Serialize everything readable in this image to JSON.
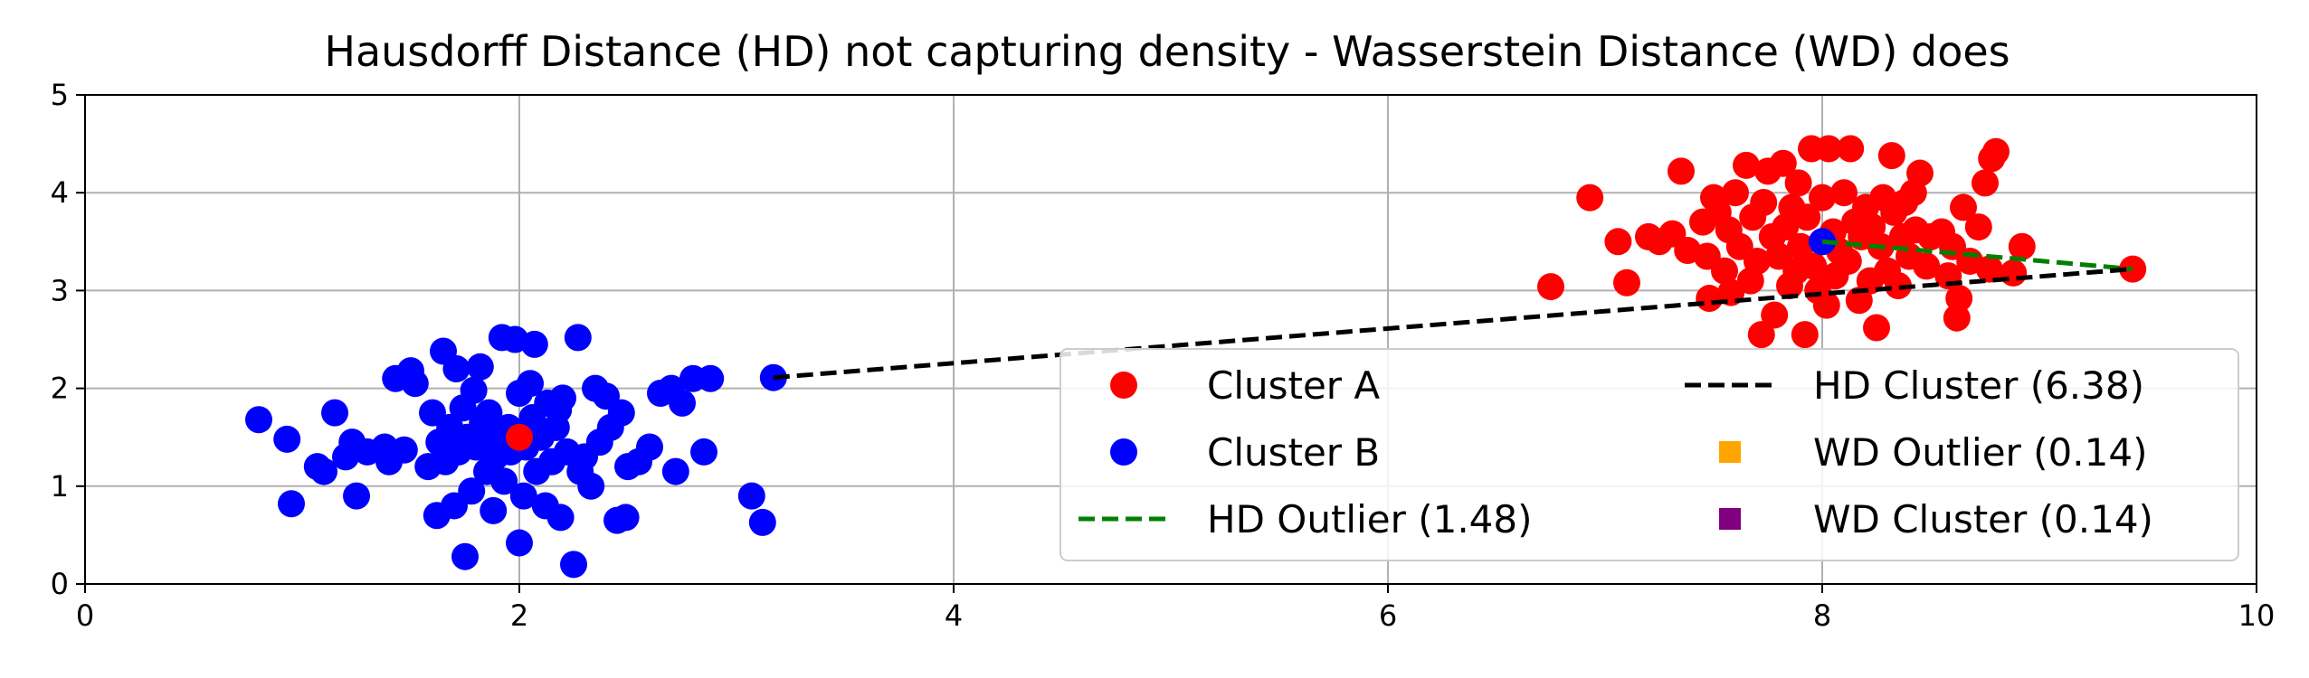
{
  "chart_data": {
    "type": "scatter",
    "title": "Hausdorff Distance (HD) not capturing density - Wasserstein Distance (WD) does",
    "xlabel": "",
    "ylabel": "",
    "xlim": [
      0,
      10
    ],
    "ylim": [
      0,
      5
    ],
    "xticks": [
      0,
      2,
      4,
      6,
      8,
      10
    ],
    "yticks": [
      0,
      1,
      2,
      3,
      4,
      5
    ],
    "grid": true,
    "legend_position": "lower-right",
    "series": [
      {
        "name": "Cluster A",
        "kind": "scatter",
        "color": "#ff0000",
        "points": [
          [
            6.75,
            3.04
          ],
          [
            6.93,
            3.95
          ],
          [
            7.06,
            3.5
          ],
          [
            7.1,
            3.08
          ],
          [
            7.2,
            3.55
          ],
          [
            7.25,
            3.5
          ],
          [
            7.31,
            3.58
          ],
          [
            7.35,
            4.22
          ],
          [
            7.38,
            3.41
          ],
          [
            7.45,
            3.7
          ],
          [
            7.47,
            3.35
          ],
          [
            7.5,
            3.95
          ],
          [
            7.52,
            3.8
          ],
          [
            7.55,
            3.2
          ],
          [
            7.57,
            3.62
          ],
          [
            7.6,
            4.0
          ],
          [
            7.62,
            3.45
          ],
          [
            7.65,
            4.28
          ],
          [
            7.67,
            3.1
          ],
          [
            7.68,
            3.75
          ],
          [
            7.7,
            3.3
          ],
          [
            7.72,
            2.55
          ],
          [
            7.73,
            3.9
          ],
          [
            7.75,
            4.22
          ],
          [
            7.77,
            3.55
          ],
          [
            7.78,
            2.75
          ],
          [
            7.8,
            3.35
          ],
          [
            7.82,
            4.3
          ],
          [
            7.83,
            3.65
          ],
          [
            7.85,
            3.05
          ],
          [
            7.86,
            3.85
          ],
          [
            7.88,
            3.2
          ],
          [
            7.89,
            4.1
          ],
          [
            7.9,
            3.45
          ],
          [
            7.92,
            2.55
          ],
          [
            7.93,
            3.75
          ],
          [
            7.95,
            4.45
          ],
          [
            7.96,
            3.25
          ],
          [
            7.98,
            3.0
          ],
          [
            8.0,
            3.95
          ],
          [
            8.0,
            3.5
          ],
          [
            8.02,
            2.85
          ],
          [
            8.03,
            4.45
          ],
          [
            8.05,
            3.6
          ],
          [
            8.06,
            3.15
          ],
          [
            8.08,
            3.4
          ],
          [
            8.1,
            4.0
          ],
          [
            8.12,
            3.3
          ],
          [
            8.13,
            4.45
          ],
          [
            8.15,
            3.7
          ],
          [
            8.17,
            2.9
          ],
          [
            8.18,
            3.55
          ],
          [
            8.2,
            3.85
          ],
          [
            8.22,
            3.1
          ],
          [
            8.23,
            3.65
          ],
          [
            8.25,
            2.62
          ],
          [
            8.27,
            3.45
          ],
          [
            8.28,
            3.95
          ],
          [
            8.3,
            3.2
          ],
          [
            8.32,
            4.38
          ],
          [
            8.33,
            3.8
          ],
          [
            8.35,
            3.05
          ],
          [
            8.37,
            3.55
          ],
          [
            8.38,
            3.9
          ],
          [
            8.4,
            3.35
          ],
          [
            8.42,
            4.0
          ],
          [
            8.43,
            3.62
          ],
          [
            8.45,
            4.2
          ],
          [
            8.48,
            3.25
          ],
          [
            8.5,
            3.55
          ],
          [
            8.55,
            3.6
          ],
          [
            8.58,
            3.15
          ],
          [
            8.6,
            3.45
          ],
          [
            8.62,
            2.72
          ],
          [
            8.63,
            2.92
          ],
          [
            8.65,
            3.85
          ],
          [
            8.68,
            3.3
          ],
          [
            8.72,
            3.65
          ],
          [
            8.75,
            4.1
          ],
          [
            8.77,
            3.22
          ],
          [
            8.78,
            4.35
          ],
          [
            8.8,
            4.42
          ],
          [
            8.92,
            3.45
          ],
          [
            7.48,
            2.92
          ],
          [
            7.58,
            2.98
          ],
          [
            8.88,
            3.18
          ],
          [
            9.43,
            3.22
          ]
        ]
      },
      {
        "name": "Cluster B",
        "kind": "scatter",
        "color": "#0000ff",
        "points": [
          [
            0.8,
            1.68
          ],
          [
            0.93,
            1.48
          ],
          [
            0.95,
            0.82
          ],
          [
            1.07,
            1.2
          ],
          [
            1.1,
            1.15
          ],
          [
            1.15,
            1.75
          ],
          [
            1.2,
            1.3
          ],
          [
            1.23,
            1.45
          ],
          [
            1.25,
            0.9
          ],
          [
            1.3,
            1.35
          ],
          [
            1.38,
            1.4
          ],
          [
            1.4,
            1.25
          ],
          [
            1.43,
            2.1
          ],
          [
            1.47,
            1.37
          ],
          [
            1.5,
            2.18
          ],
          [
            1.52,
            2.05
          ],
          [
            1.58,
            1.2
          ],
          [
            1.6,
            1.75
          ],
          [
            1.62,
            0.7
          ],
          [
            1.63,
            1.45
          ],
          [
            1.65,
            2.38
          ],
          [
            1.66,
            1.25
          ],
          [
            1.68,
            1.6
          ],
          [
            1.7,
            0.8
          ],
          [
            1.71,
            2.2
          ],
          [
            1.72,
            1.35
          ],
          [
            1.74,
            1.8
          ],
          [
            1.75,
            0.28
          ],
          [
            1.76,
            1.5
          ],
          [
            1.78,
            0.95
          ],
          [
            1.79,
            1.98
          ],
          [
            1.8,
            1.4
          ],
          [
            1.82,
            2.22
          ],
          [
            1.83,
            1.65
          ],
          [
            1.85,
            1.15
          ],
          [
            1.86,
            1.75
          ],
          [
            1.88,
            0.75
          ],
          [
            1.89,
            1.3
          ],
          [
            1.9,
            1.5
          ],
          [
            1.92,
            2.52
          ],
          [
            1.93,
            1.05
          ],
          [
            1.95,
            1.6
          ],
          [
            1.96,
            1.35
          ],
          [
            1.98,
            2.5
          ],
          [
            2.0,
            0.42
          ],
          [
            2.0,
            1.95
          ],
          [
            2.02,
            0.9
          ],
          [
            2.03,
            1.4
          ],
          [
            2.05,
            2.05
          ],
          [
            2.06,
            1.7
          ],
          [
            2.07,
            2.45
          ],
          [
            2.08,
            1.15
          ],
          [
            2.1,
            1.5
          ],
          [
            2.12,
            0.8
          ],
          [
            2.13,
            1.85
          ],
          [
            2.15,
            1.25
          ],
          [
            2.17,
            1.6
          ],
          [
            2.18,
            1.78
          ],
          [
            2.19,
            0.68
          ],
          [
            2.2,
            1.9
          ],
          [
            2.22,
            1.35
          ],
          [
            2.25,
            0.2
          ],
          [
            2.27,
            2.52
          ],
          [
            2.28,
            1.15
          ],
          [
            2.3,
            1.3
          ],
          [
            2.33,
            1.0
          ],
          [
            2.35,
            2.0
          ],
          [
            2.37,
            1.45
          ],
          [
            2.4,
            1.92
          ],
          [
            2.42,
            1.6
          ],
          [
            2.45,
            0.65
          ],
          [
            2.47,
            1.75
          ],
          [
            2.49,
            0.68
          ],
          [
            2.5,
            1.2
          ],
          [
            2.55,
            1.25
          ],
          [
            2.6,
            1.4
          ],
          [
            2.65,
            1.95
          ],
          [
            2.7,
            2.0
          ],
          [
            2.72,
            1.15
          ],
          [
            2.75,
            1.85
          ],
          [
            2.8,
            2.1
          ],
          [
            2.85,
            1.35
          ],
          [
            2.88,
            2.1
          ],
          [
            3.07,
            0.9
          ],
          [
            3.12,
            0.63
          ],
          [
            3.17,
            2.11
          ],
          [
            8.0,
            3.5
          ]
        ]
      },
      {
        "name": "HD Outlier (1.48)",
        "kind": "dashed-line",
        "color": "#008000",
        "points": [
          [
            8.0,
            3.5
          ],
          [
            9.43,
            3.22
          ]
        ]
      },
      {
        "name": "HD Cluster (6.38)",
        "kind": "dashed-line",
        "color": "#000000",
        "points": [
          [
            3.17,
            2.11
          ],
          [
            9.43,
            3.22
          ]
        ]
      },
      {
        "name": "WD Outlier (0.14)",
        "kind": "square-marker",
        "color": "#ffa500",
        "points": []
      },
      {
        "name": "WD Cluster (0.14)",
        "kind": "square-marker",
        "color": "#800080",
        "points": []
      }
    ],
    "extra_points": [
      {
        "series": "Cluster A",
        "point": [
          2.0,
          1.5
        ]
      }
    ]
  }
}
